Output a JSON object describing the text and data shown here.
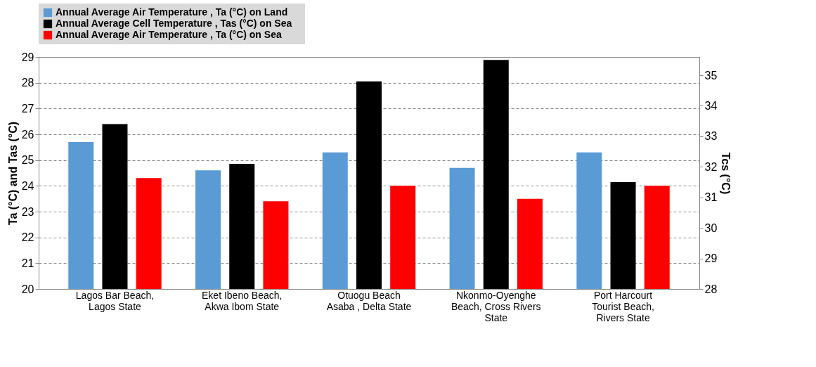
{
  "chart_data": {
    "type": "bar",
    "categories": [
      "Lagos  Bar Beach,\nLagos State",
      "Eket Ibeno Beach,\nAkwa Ibom State",
      "Otuogu Beach\nAsaba , Delta State",
      "Nkonmo-Oyenghe\nBeach,  Cross Rivers\nState",
      "Port Harcourt\nTourist Beach,\nRivers State"
    ],
    "series": [
      {
        "name": "Annual Average Air Temperature  , Ta (°C) on Land",
        "color": "#5b9bd5",
        "values": [
          25.7,
          24.6,
          25.3,
          24.7,
          25.3
        ]
      },
      {
        "name": "Annual Average  Cell Temperature  , Tas (°C) on  Sea",
        "color": "#000000",
        "axis": "y2",
        "values": [
          33.4,
          32.1,
          34.8,
          35.5,
          31.5
        ]
      },
      {
        "name": "Annual Average Air Temperature  , Ta (°C) on   Sea",
        "color": "#ff0000",
        "values": [
          24.3,
          23.4,
          24.0,
          23.5,
          24.0
        ]
      }
    ],
    "ylabel": "Ta (°C)  and Tas (°C)",
    "y2label": "Tcs (°C)",
    "ylim": [
      20,
      29
    ],
    "yticks": [
      20,
      21,
      22,
      23,
      24,
      25,
      26,
      27,
      28,
      29
    ],
    "y2lim": [
      28,
      35.6
    ],
    "y2ticks": [
      28,
      29,
      30,
      31,
      32,
      33,
      34,
      35
    ],
    "grid": "y",
    "legend": "top"
  }
}
